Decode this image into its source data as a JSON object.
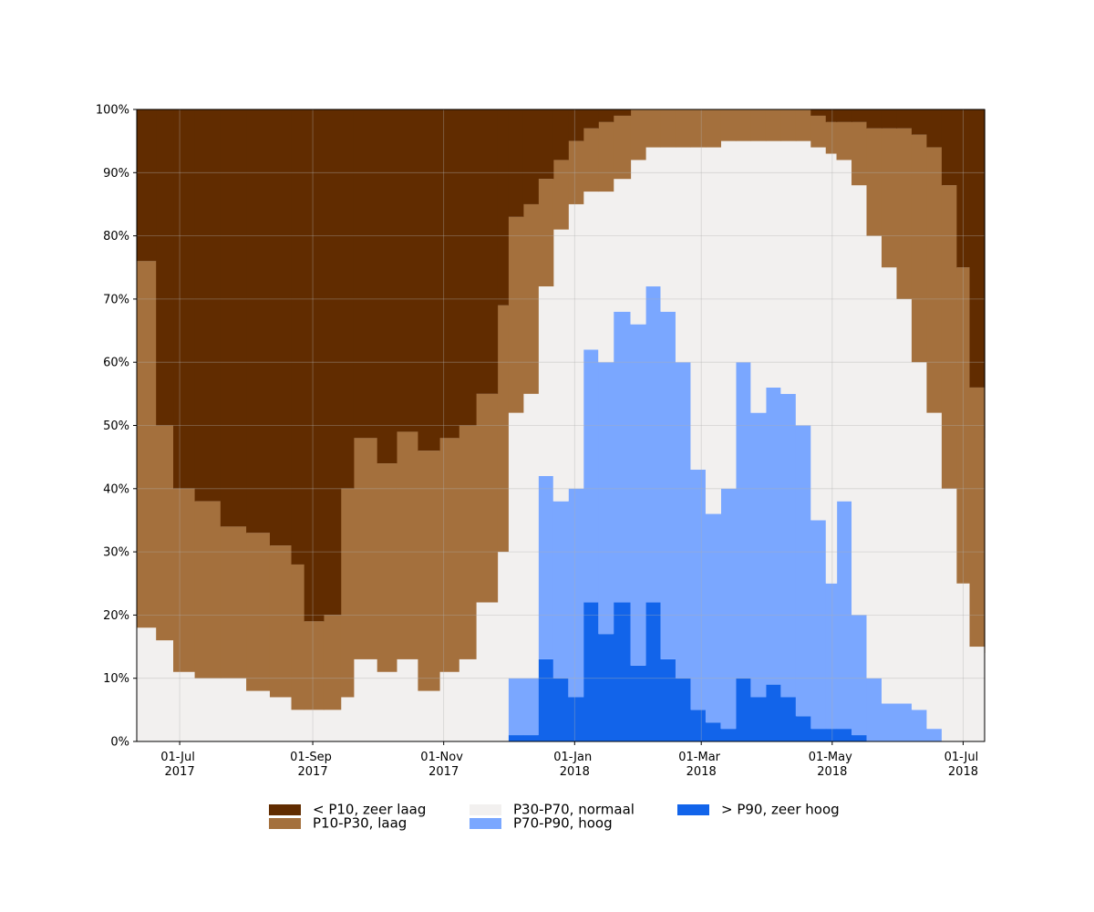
{
  "chart_data": {
    "type": "stacked-step-area",
    "x": [
      "2017-06-11",
      "2017-06-20",
      "2017-06-28",
      "2017-07-08",
      "2017-07-20",
      "2017-08-01",
      "2017-08-12",
      "2017-08-22",
      "2017-08-28",
      "2017-09-06",
      "2017-09-14",
      "2017-09-20",
      "2017-10-01",
      "2017-10-10",
      "2017-10-20",
      "2017-10-30",
      "2017-11-08",
      "2017-11-16",
      "2017-11-26",
      "2017-12-01",
      "2017-12-08",
      "2017-12-15",
      "2017-12-22",
      "2017-12-29",
      "2018-01-05",
      "2018-01-12",
      "2018-01-19",
      "2018-01-27",
      "2018-02-03",
      "2018-02-10",
      "2018-02-17",
      "2018-02-24",
      "2018-03-03",
      "2018-03-10",
      "2018-03-17",
      "2018-03-24",
      "2018-03-31",
      "2018-04-07",
      "2018-04-14",
      "2018-04-21",
      "2018-04-28",
      "2018-05-03",
      "2018-05-10",
      "2018-05-17",
      "2018-05-24",
      "2018-05-31",
      "2018-06-07",
      "2018-06-14",
      "2018-06-21",
      "2018-06-28",
      "2018-07-04",
      "2018-07-11"
    ],
    "series": [
      {
        "name": "< P10, zeer laag",
        "color": "#612c00",
        "values": [
          24,
          50,
          60,
          62,
          66,
          67,
          69,
          72,
          81,
          80,
          60,
          52,
          56,
          51,
          54,
          52,
          50,
          45,
          31,
          17,
          15,
          11,
          8,
          5,
          3,
          2,
          1,
          0,
          0,
          0,
          0,
          0,
          0,
          0,
          0,
          0,
          0,
          0,
          0,
          1,
          2,
          2,
          2,
          3,
          3,
          3,
          4,
          6,
          12,
          25,
          44,
          52
        ]
      },
      {
        "name": "P10-P30, laag",
        "color": "#a4703d",
        "values": [
          58,
          34,
          29,
          28,
          24,
          25,
          24,
          23,
          14,
          15,
          33,
          35,
          33,
          36,
          38,
          37,
          37,
          33,
          39,
          31,
          30,
          17,
          11,
          10,
          10,
          11,
          10,
          8,
          6,
          6,
          6,
          6,
          6,
          5,
          5,
          5,
          5,
          5,
          5,
          5,
          5,
          6,
          10,
          17,
          22,
          27,
          36,
          42,
          48,
          50,
          41,
          34
        ]
      },
      {
        "name": "P30-P70, normaal",
        "color": "#f2f0ef",
        "values": [
          18,
          16,
          11,
          10,
          10,
          8,
          7,
          5,
          5,
          5,
          7,
          13,
          11,
          13,
          8,
          11,
          13,
          22,
          30,
          42,
          45,
          30,
          43,
          45,
          25,
          27,
          21,
          26,
          22,
          26,
          34,
          51,
          58,
          55,
          35,
          43,
          39,
          40,
          45,
          59,
          68,
          54,
          68,
          70,
          69,
          64,
          55,
          50,
          40,
          25,
          15,
          14
        ]
      },
      {
        "name": "P70-P90, hoog",
        "color": "#7aa7ff",
        "values": [
          0,
          0,
          0,
          0,
          0,
          0,
          0,
          0,
          0,
          0,
          0,
          0,
          0,
          0,
          0,
          0,
          0,
          0,
          0,
          9,
          9,
          29,
          28,
          33,
          40,
          43,
          46,
          54,
          50,
          55,
          50,
          38,
          33,
          38,
          50,
          45,
          47,
          48,
          46,
          33,
          23,
          36,
          19,
          10,
          6,
          6,
          5,
          2,
          0,
          0,
          0,
          0
        ]
      },
      {
        "name": "> P90, zeer hoog",
        "color": "#1264ea",
        "values": [
          0,
          0,
          0,
          0,
          0,
          0,
          0,
          0,
          0,
          0,
          0,
          0,
          0,
          0,
          0,
          0,
          0,
          0,
          0,
          1,
          1,
          13,
          10,
          7,
          22,
          17,
          22,
          12,
          22,
          13,
          10,
          5,
          3,
          2,
          10,
          7,
          9,
          7,
          4,
          2,
          2,
          2,
          1,
          0,
          0,
          0,
          0,
          0,
          0,
          0,
          0,
          0
        ]
      }
    ],
    "xlim": [
      "2017-06-11",
      "2018-07-11"
    ],
    "xticks": [
      {
        "value": "2017-07-01",
        "label": "01-Jul 2017"
      },
      {
        "value": "2017-09-01",
        "label": "01-Sep 2017"
      },
      {
        "value": "2017-11-01",
        "label": "01-Nov 2017"
      },
      {
        "value": "2018-01-01",
        "label": "01-Jan 2018"
      },
      {
        "value": "2018-03-01",
        "label": "01-Mar 2018"
      },
      {
        "value": "2018-05-01",
        "label": "01-May 2018"
      },
      {
        "value": "2018-07-01",
        "label": "01-Jul 2018"
      }
    ],
    "ylim": [
      0,
      100
    ],
    "yticks": [
      {
        "value": 0,
        "label": "0%"
      },
      {
        "value": 10,
        "label": "10%"
      },
      {
        "value": 20,
        "label": "20%"
      },
      {
        "value": 30,
        "label": "30%"
      },
      {
        "value": 40,
        "label": "40%"
      },
      {
        "value": 50,
        "label": "50%"
      },
      {
        "value": 60,
        "label": "60%"
      },
      {
        "value": 70,
        "label": "70%"
      },
      {
        "value": 80,
        "label": "80%"
      },
      {
        "value": 90,
        "label": "90%"
      },
      {
        "value": 100,
        "label": "100%"
      }
    ],
    "grid": true,
    "legend": "bottom"
  }
}
